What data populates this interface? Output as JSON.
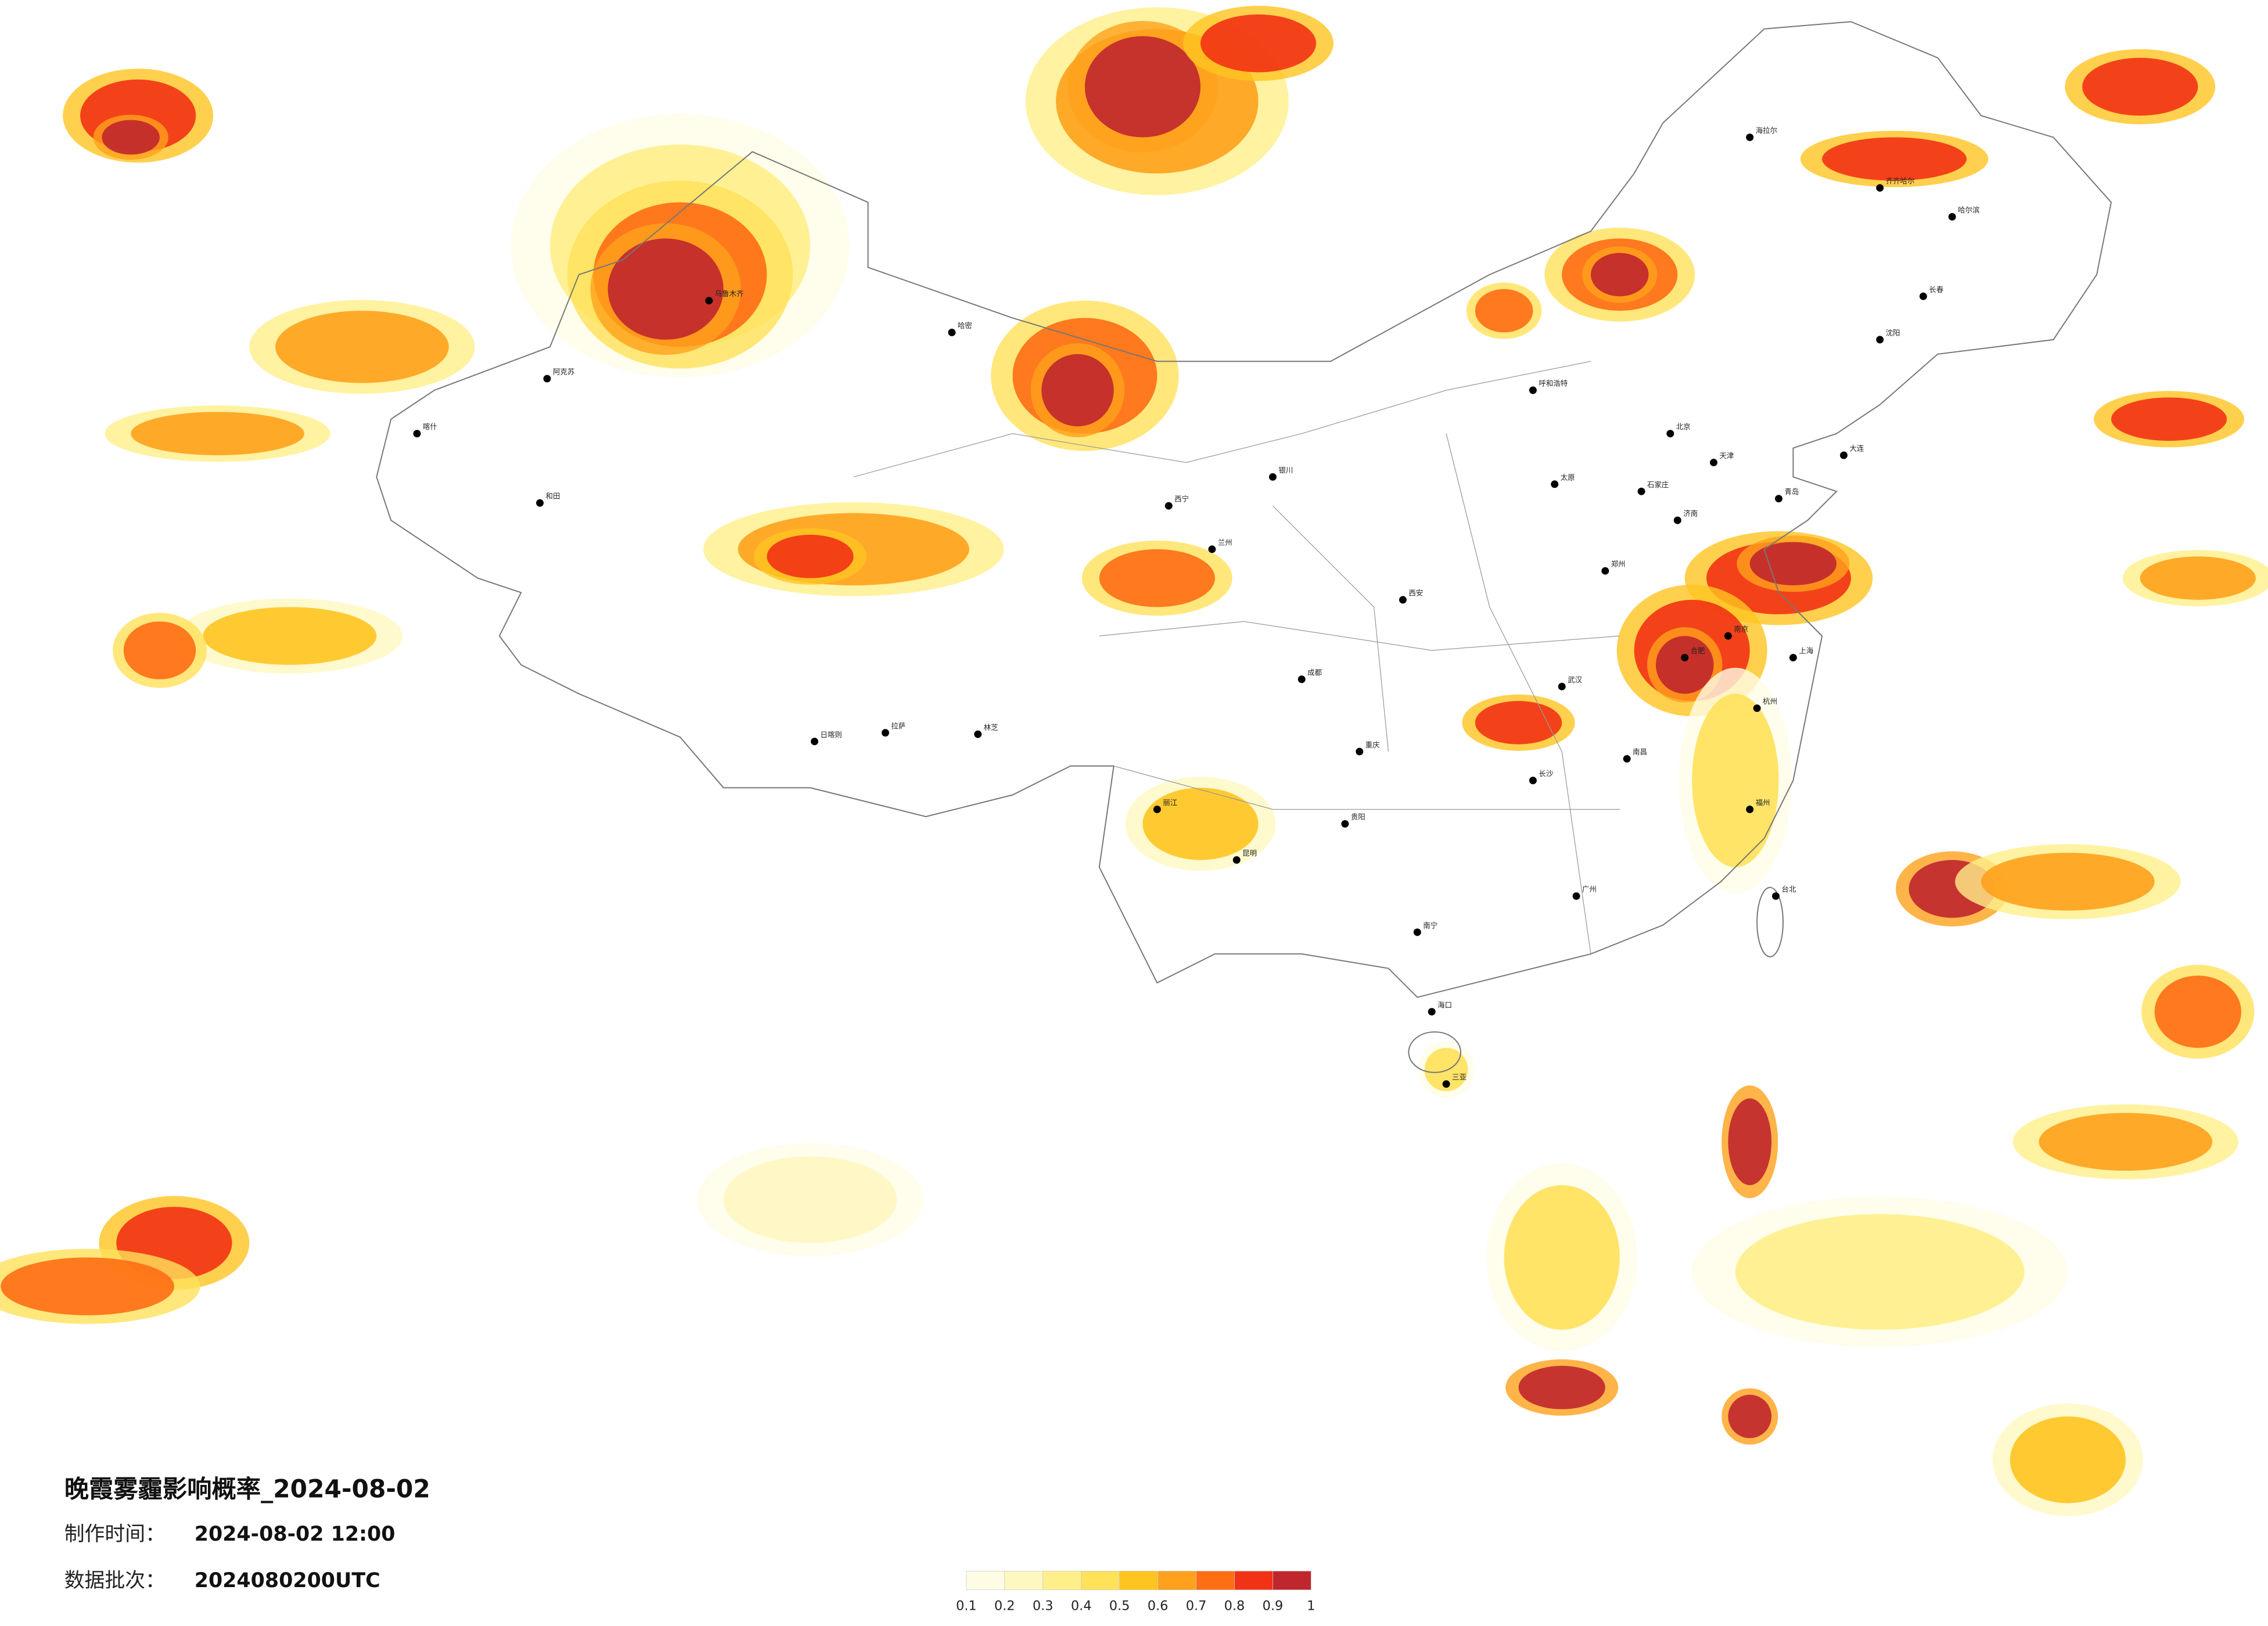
{
  "header": {
    "title": "晚霞雾霾影响概率_2024-08-02",
    "time_label": "制作时间：",
    "time_value": "2024-08-02 12:00",
    "batch_label": "数据批次：",
    "batch_value": "2024080200UTC"
  },
  "legend": {
    "ticks": [
      0.1,
      0.2,
      0.3,
      0.4,
      0.5,
      0.6,
      0.7,
      0.8,
      0.9,
      1
    ],
    "colors": [
      "#fffce6",
      "#fff7c2",
      "#ffef8a",
      "#ffe15a",
      "#ffc420",
      "#ffa11c",
      "#ff6d14",
      "#f23214",
      "#c0262d"
    ]
  },
  "cities": [
    "乌鲁木齐",
    "哈密",
    "和田",
    "阿克苏",
    "喀什",
    "拉萨",
    "日喀则",
    "林芝",
    "西宁",
    "兰州",
    "银川",
    "呼和浩特",
    "北京",
    "天津",
    "石家庄",
    "太原",
    "济南",
    "郑州",
    "西安",
    "成都",
    "重庆",
    "武汉",
    "长沙",
    "南昌",
    "合肥",
    "南京",
    "上海",
    "杭州",
    "福州",
    "广州",
    "南宁",
    "昆明",
    "贵阳",
    "海口",
    "台北",
    "沈阳",
    "长春",
    "哈尔滨",
    "大连",
    "青岛",
    "三亚",
    "齐齐哈尔",
    "海拉尔",
    "丽江"
  ]
}
